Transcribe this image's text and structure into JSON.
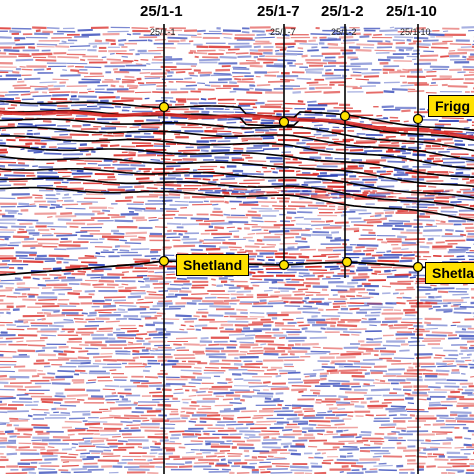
{
  "wells": [
    {
      "name": "25/1-1",
      "sublabel": "25/1-1"
    },
    {
      "name": "25/1-7",
      "sublabel": "25/1-7"
    },
    {
      "name": "25/1-2",
      "sublabel": "25/1-2"
    },
    {
      "name": "25/1-10",
      "sublabel": "25/1-10"
    }
  ],
  "markers": {
    "frigg": "Frigg",
    "shetland_1": "Shetland",
    "shetland_2": "Shetla"
  },
  "colors": {
    "positive": "#d8231f",
    "negative": "#2a3fb5",
    "background": "#ffffff",
    "horizon": "#000000",
    "label_fill": "#ffe100",
    "well_pick": "#ffe100"
  }
}
